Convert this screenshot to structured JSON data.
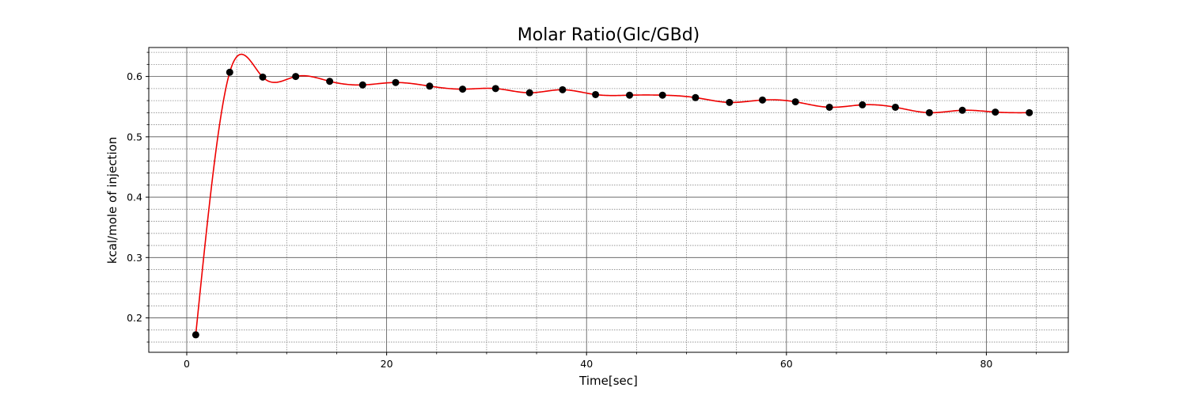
{
  "chart_data": {
    "type": "scatter",
    "title": "Molar Ratio(Glc/GBd)",
    "xlabel": "Time[sec]",
    "ylabel": "kcal/mole of injection",
    "xlim": [
      -3.8,
      88.2
    ],
    "ylim": [
      0.143,
      0.648
    ],
    "x_major_ticks": [
      0,
      20,
      40,
      60,
      80
    ],
    "x_major_tick_labels": [
      "0",
      "20",
      "40",
      "60",
      "80"
    ],
    "x_minor_step": 5,
    "y_major_ticks": [
      0.2,
      0.3,
      0.4,
      0.5,
      0.6
    ],
    "y_major_tick_labels": [
      "0.2",
      "0.3",
      "0.4",
      "0.5",
      "0.6"
    ],
    "y_minor_step": 0.02,
    "grid": true,
    "series": [
      {
        "kind": "points",
        "color": "#000000",
        "x": [
          0.9,
          4.3,
          7.6,
          10.9,
          14.3,
          17.6,
          20.9,
          24.3,
          27.6,
          30.9,
          34.3,
          37.6,
          40.9,
          44.3,
          47.6,
          50.9,
          54.3,
          57.6,
          60.9,
          64.3,
          67.6,
          70.9,
          74.3,
          77.6,
          80.9,
          84.3
        ],
        "y": [
          0.172,
          0.607,
          0.599,
          0.6,
          0.592,
          0.586,
          0.59,
          0.584,
          0.579,
          0.58,
          0.573,
          0.578,
          0.57,
          0.569,
          0.569,
          0.565,
          0.557,
          0.561,
          0.558,
          0.549,
          0.553,
          0.549,
          0.54,
          0.544,
          0.541,
          0.54
        ]
      },
      {
        "kind": "fit-curve",
        "color": "#ee0000"
      }
    ]
  }
}
